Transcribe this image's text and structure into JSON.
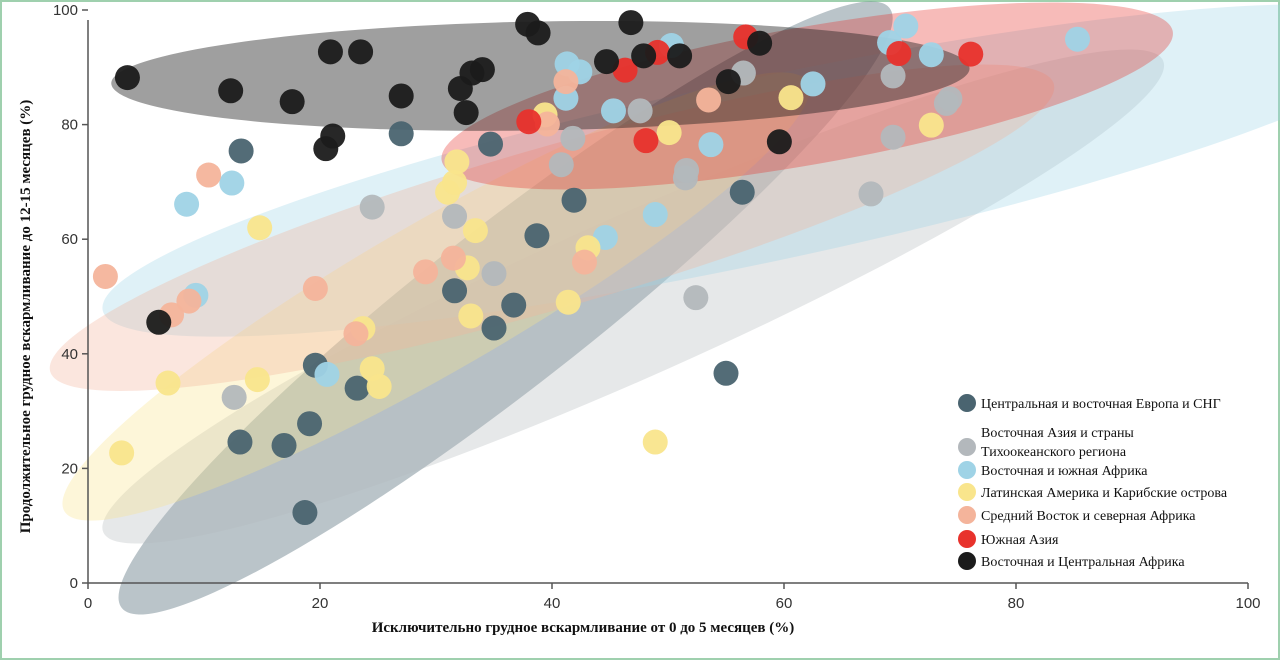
{
  "chart_data": {
    "type": "scatter",
    "title": "",
    "xlabel": "Исключительно грудное вскармливание от 0 до 5 месяцев (%)",
    "ylabel": "Продолжительное грудное вскармливание до 12-15 месяцев (%)",
    "xlim": [
      0,
      100
    ],
    "ylim": [
      0,
      100
    ],
    "xticks": [
      "0",
      "20",
      "40",
      "60",
      "80",
      "100"
    ],
    "yticks": [
      "0",
      "20",
      "40",
      "60",
      "80",
      "100"
    ],
    "grid": false,
    "legend_position": "bottom-right",
    "series": [
      {
        "name": "Центральная и восточная Европа и СНГ",
        "color": "#4a6470",
        "region_ellipse": {
          "cx": 36,
          "cy": 48,
          "rx": 42,
          "ry": 14,
          "angle": 38
        },
        "points": [
          [
            18.7,
            12.3
          ],
          [
            16.9,
            24
          ],
          [
            13.1,
            24.6
          ],
          [
            19.1,
            27.8
          ],
          [
            23.2,
            34
          ],
          [
            19.6,
            38
          ],
          [
            31.6,
            51
          ],
          [
            35,
            44.5
          ],
          [
            36.7,
            48.5
          ],
          [
            38.7,
            60.6
          ],
          [
            41.9,
            66.8
          ],
          [
            34.7,
            76.6
          ],
          [
            27,
            78.4
          ],
          [
            13.2,
            75.4
          ],
          [
            56.4,
            68.2
          ],
          [
            55,
            36.6
          ]
        ]
      },
      {
        "name": "Восточная Азия и страны Тихоокеанского региона",
        "color": "#b3b8bc",
        "region_ellipse": {
          "cx": 47,
          "cy": 50,
          "rx": 50,
          "ry": 14,
          "angle": 24
        },
        "points": [
          [
            12.6,
            32.4
          ],
          [
            24.5,
            65.6
          ],
          [
            31.6,
            64
          ],
          [
            35,
            54
          ],
          [
            40.8,
            73
          ],
          [
            41.8,
            77.6
          ],
          [
            47.6,
            82.4
          ],
          [
            56.5,
            89
          ],
          [
            51.5,
            70.7
          ],
          [
            51.6,
            72
          ],
          [
            52.4,
            49.8
          ],
          [
            67.5,
            67.9
          ],
          [
            69.4,
            77.8
          ],
          [
            69.4,
            88.5
          ],
          [
            74,
            83.7
          ],
          [
            74.3,
            84.5
          ]
        ]
      },
      {
        "name": "Восточная и южная Африка",
        "color": "#9fd3e6",
        "region_ellipse": {
          "cx": 58,
          "cy": 72,
          "rx": 58,
          "ry": 16,
          "angle": 12
        },
        "points": [
          [
            8.5,
            66.1
          ],
          [
            9.3,
            50.2
          ],
          [
            12.4,
            69.8
          ],
          [
            20.6,
            36.4
          ],
          [
            41.2,
            84.6
          ],
          [
            41.3,
            90.6
          ],
          [
            42.4,
            89.2
          ],
          [
            44.6,
            60.3
          ],
          [
            45.3,
            82.4
          ],
          [
            48.9,
            64.3
          ],
          [
            50.3,
            93.8
          ],
          [
            53.7,
            76.5
          ],
          [
            62.5,
            87.1
          ],
          [
            69.1,
            94.3
          ],
          [
            70.5,
            97.2
          ],
          [
            72.7,
            92.2
          ],
          [
            85.3,
            94.9
          ]
        ]
      },
      {
        "name": "Латинская Америка и Карибские острова",
        "color": "#f9e58c",
        "region_ellipse": {
          "cx": 30,
          "cy": 50,
          "rx": 37,
          "ry": 13,
          "angle": 30
        },
        "points": [
          [
            2.9,
            22.7
          ],
          [
            6.9,
            34.9
          ],
          [
            14.6,
            35.5
          ],
          [
            14.8,
            62
          ],
          [
            23.7,
            44.4
          ],
          [
            24.5,
            37.4
          ],
          [
            25.1,
            34.3
          ],
          [
            31,
            68.2
          ],
          [
            31.6,
            69.9
          ],
          [
            31.8,
            73.5
          ],
          [
            32.7,
            55
          ],
          [
            33,
            46.6
          ],
          [
            33.4,
            61.5
          ],
          [
            39.4,
            81.7
          ],
          [
            41.4,
            49
          ],
          [
            43.1,
            58.5
          ],
          [
            48.9,
            24.6
          ],
          [
            50.1,
            78.6
          ],
          [
            60.6,
            84.7
          ],
          [
            72.7,
            79.9
          ]
        ]
      },
      {
        "name": "Средний Восток и северная Африка",
        "color": "#f4b49b",
        "region_ellipse": {
          "cx": 40,
          "cy": 62,
          "rx": 45,
          "ry": 14,
          "angle": 16
        },
        "points": [
          [
            1.5,
            53.5
          ],
          [
            7.2,
            46.8
          ],
          [
            8.7,
            49.2
          ],
          [
            10.4,
            71.2
          ],
          [
            19.6,
            51.4
          ],
          [
            23.1,
            43.5
          ],
          [
            29.1,
            54.3
          ],
          [
            31.5,
            56.7
          ],
          [
            39.6,
            80.1
          ],
          [
            41.2,
            87.5
          ],
          [
            42.8,
            56
          ],
          [
            53.5,
            84.3
          ]
        ]
      },
      {
        "name": "Южная Азия",
        "color": "#e8322c",
        "region_ellipse": {
          "cx": 62,
          "cy": 85,
          "rx": 32,
          "ry": 12,
          "angle": 10
        },
        "points": [
          [
            38,
            80.5
          ],
          [
            46.3,
            89.5
          ],
          [
            48.1,
            77.2
          ],
          [
            49.1,
            92.6
          ],
          [
            56.7,
            95.3
          ],
          [
            69.9,
            92.4
          ],
          [
            76.1,
            92.3
          ]
        ]
      },
      {
        "name": "Восточная и Центральная Африка",
        "color": "#1b1b1b",
        "region_ellipse": {
          "cx": 39,
          "cy": 88.5,
          "rx": 37,
          "ry": 9.5,
          "angle": 1
        },
        "points": [
          [
            3.4,
            88.2
          ],
          [
            6.1,
            45.5
          ],
          [
            12.3,
            85.9
          ],
          [
            17.6,
            84
          ],
          [
            20.5,
            75.8
          ],
          [
            21.1,
            78
          ],
          [
            20.9,
            92.7
          ],
          [
            23.5,
            92.7
          ],
          [
            27,
            85
          ],
          [
            32.1,
            86.3
          ],
          [
            32.6,
            82.1
          ],
          [
            33.1,
            89
          ],
          [
            34,
            89.6
          ],
          [
            37.9,
            97.5
          ],
          [
            38.8,
            96
          ],
          [
            44.7,
            91
          ],
          [
            46.8,
            97.8
          ],
          [
            47.9,
            92
          ],
          [
            51,
            92
          ],
          [
            55.2,
            87.5
          ],
          [
            57.9,
            94.2
          ],
          [
            59.6,
            77
          ]
        ]
      }
    ]
  }
}
